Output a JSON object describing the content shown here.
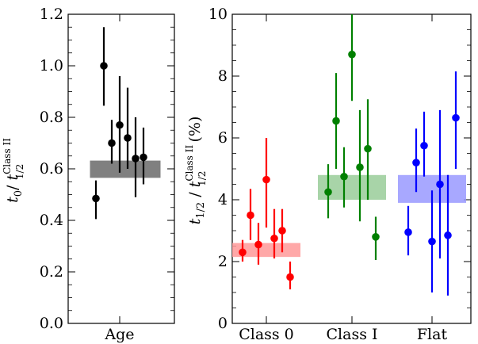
{
  "chart_data": [
    {
      "type": "scatter",
      "xlabel": "",
      "ylabel_main": "t",
      "ylabel_sub": "0",
      "ylabel_sep": "/ ",
      "ylabel_den": "t",
      "ylabel_den_sup": "Class II",
      "ylabel_den_sub": "1/2",
      "ylim": [
        0,
        1.2
      ],
      "yticks": [
        0.0,
        0.2,
        0.4,
        0.6,
        0.8,
        1.0,
        1.2
      ],
      "ytick_labels": [
        "0.0",
        "0.2",
        "0.4",
        "0.6",
        "0.8",
        "1.0",
        "1.2"
      ],
      "categories": [
        "Age"
      ],
      "series": [
        {
          "category": "Age",
          "color": "#000000",
          "band": [
            0.565,
            0.632
          ],
          "band_color": "#808080",
          "points": [
            {
              "y": 0.485,
              "lo": 0.405,
              "hi": 0.555
            },
            {
              "y": 1.0,
              "lo": 0.845,
              "hi": 1.15
            },
            {
              "y": 0.7,
              "lo": 0.62,
              "hi": 0.79
            },
            {
              "y": 0.77,
              "lo": 0.585,
              "hi": 0.96
            },
            {
              "y": 0.72,
              "lo": 0.6,
              "hi": 0.915
            },
            {
              "y": 0.64,
              "lo": 0.49,
              "hi": 0.8
            },
            {
              "y": 0.645,
              "lo": 0.54,
              "hi": 0.76
            }
          ]
        }
      ]
    },
    {
      "type": "scatter",
      "xlabel": "",
      "ylabel_main": "t",
      "ylabel_sub": "1/2",
      "ylabel_sep": " / ",
      "ylabel_den": "t",
      "ylabel_den_sup": "Class II",
      "ylabel_den_sub": "1/2",
      "ylabel_unit": " (%)",
      "ylim": [
        0,
        10
      ],
      "yticks": [
        0,
        2,
        4,
        6,
        8,
        10
      ],
      "ytick_labels": [
        "0",
        "2",
        "4",
        "6",
        "8",
        "10"
      ],
      "categories": [
        "Class 0",
        "Class I",
        "Flat"
      ],
      "series": [
        {
          "category": "Class 0",
          "color": "#ff0000",
          "band": [
            2.15,
            2.6
          ],
          "band_color": "#ff9999",
          "points": [
            {
              "y": 2.3,
              "lo": 2.0,
              "hi": 2.7
            },
            {
              "y": 3.5,
              "lo": 2.7,
              "hi": 4.35
            },
            {
              "y": 2.55,
              "lo": 1.9,
              "hi": 3.25
            },
            {
              "y": 4.65,
              "lo": 3.1,
              "hi": 6.0
            },
            {
              "y": 2.75,
              "lo": 2.1,
              "hi": 3.7
            },
            {
              "y": 3.0,
              "lo": 2.3,
              "hi": 3.7
            },
            {
              "y": 1.5,
              "lo": 1.1,
              "hi": 2.0
            }
          ]
        },
        {
          "category": "Class I",
          "color": "#008000",
          "band": [
            4.0,
            4.8
          ],
          "band_color": "#99cc99",
          "points": [
            {
              "y": 4.25,
              "lo": 3.4,
              "hi": 5.15
            },
            {
              "y": 6.55,
              "lo": 5.0,
              "hi": 8.1
            },
            {
              "y": 4.75,
              "lo": 3.75,
              "hi": 5.7
            },
            {
              "y": 8.7,
              "lo": 7.2,
              "hi": 10.0
            },
            {
              "y": 5.05,
              "lo": 3.3,
              "hi": 6.9
            },
            {
              "y": 5.65,
              "lo": 4.0,
              "hi": 7.25
            },
            {
              "y": 2.8,
              "lo": 2.05,
              "hi": 3.45
            }
          ]
        },
        {
          "category": "Flat",
          "color": "#0000ff",
          "band": [
            3.9,
            4.8
          ],
          "band_color": "#9999ff",
          "points": [
            {
              "y": 2.95,
              "lo": 2.2,
              "hi": 3.8
            },
            {
              "y": 5.2,
              "lo": 4.25,
              "hi": 6.3
            },
            {
              "y": 5.75,
              "lo": 4.75,
              "hi": 6.85
            },
            {
              "y": 2.65,
              "lo": 1.0,
              "hi": 4.3
            },
            {
              "y": 4.5,
              "lo": 2.1,
              "hi": 6.9
            },
            {
              "y": 2.85,
              "lo": 0.9,
              "hi": 4.8
            },
            {
              "y": 6.65,
              "lo": 5.0,
              "hi": 8.15
            }
          ]
        }
      ]
    }
  ]
}
